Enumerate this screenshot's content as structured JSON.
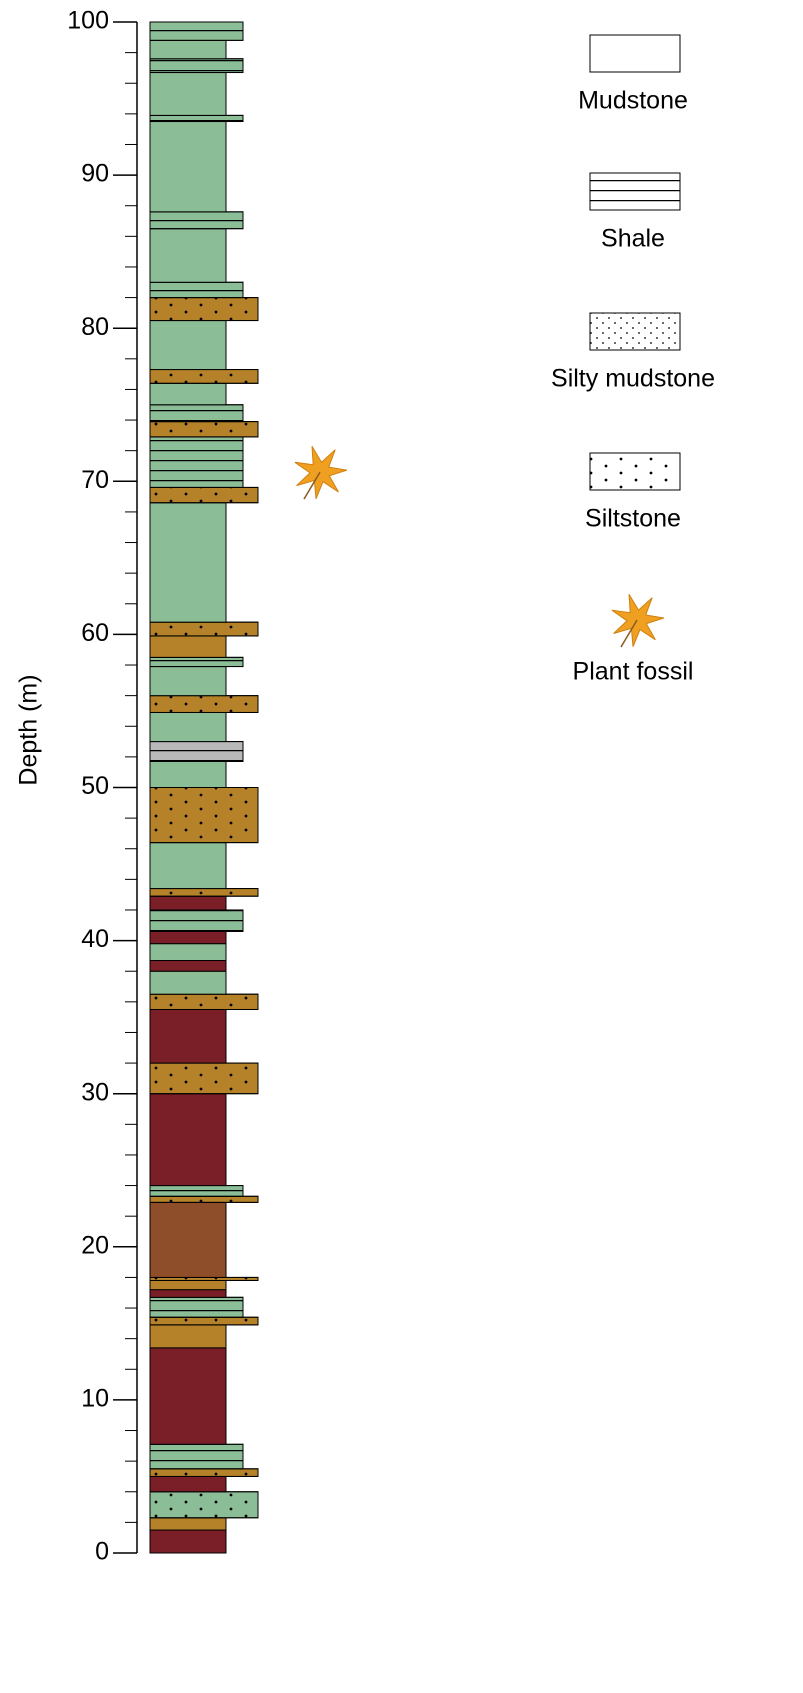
{
  "chart_data": {
    "type": "strat-column",
    "y_label": "Depth (m)",
    "ylim": [
      0,
      100
    ],
    "yticks": [
      0,
      10,
      20,
      30,
      40,
      50,
      60,
      70,
      80,
      90,
      100
    ],
    "yminorticks": [
      2,
      4,
      6,
      8,
      12,
      14,
      16,
      18,
      22,
      24,
      26,
      28,
      32,
      34,
      36,
      38,
      42,
      44,
      46,
      48,
      52,
      54,
      56,
      58,
      62,
      64,
      66,
      68,
      72,
      74,
      76,
      78,
      82,
      84,
      86,
      88,
      92,
      94,
      96,
      98
    ],
    "legend": [
      "Mudstone",
      "Shale",
      "Silty mudstone",
      "Siltstone",
      "Plant fossil"
    ],
    "layers": [
      {
        "bottom": 0,
        "top": 1.5,
        "lithology": "Mudstone",
        "color": "#7a1f28"
      },
      {
        "bottom": 1.5,
        "top": 2.3,
        "lithology": "Mudstone",
        "color": "#b5822a"
      },
      {
        "bottom": 2.3,
        "top": 4.0,
        "lithology": "Siltstone",
        "color": "#8bbd96"
      },
      {
        "bottom": 4.0,
        "top": 5.0,
        "lithology": "Mudstone",
        "color": "#7a1f28"
      },
      {
        "bottom": 5.0,
        "top": 5.5,
        "lithology": "Siltstone",
        "color": "#b5822a"
      },
      {
        "bottom": 5.5,
        "top": 7.1,
        "lithology": "Shale",
        "color": "#8bbd96"
      },
      {
        "bottom": 7.1,
        "top": 13.4,
        "lithology": "Mudstone",
        "color": "#7a1f28"
      },
      {
        "bottom": 13.4,
        "top": 14.9,
        "lithology": "Mudstone",
        "color": "#b5822a"
      },
      {
        "bottom": 14.9,
        "top": 15.4,
        "lithology": "Siltstone",
        "color": "#b5822a"
      },
      {
        "bottom": 15.4,
        "top": 16.7,
        "lithology": "Shale",
        "color": "#8bbd96"
      },
      {
        "bottom": 16.7,
        "top": 17.2,
        "lithology": "Mudstone",
        "color": "#7a1f28"
      },
      {
        "bottom": 17.2,
        "top": 17.8,
        "lithology": "Mudstone",
        "color": "#b5822a"
      },
      {
        "bottom": 17.8,
        "top": 18.0,
        "lithology": "Siltstone",
        "color": "#b5822a"
      },
      {
        "bottom": 18.0,
        "top": 22.9,
        "lithology": "Mudstone",
        "color": "#8f4e2a"
      },
      {
        "bottom": 22.9,
        "top": 23.3,
        "lithology": "Siltstone",
        "color": "#b5822a"
      },
      {
        "bottom": 23.3,
        "top": 24.0,
        "lithology": "Shale",
        "color": "#8bbd96"
      },
      {
        "bottom": 24.0,
        "top": 30.0,
        "lithology": "Mudstone",
        "color": "#7a1f28"
      },
      {
        "bottom": 30.0,
        "top": 32.0,
        "lithology": "Siltstone",
        "color": "#b5822a"
      },
      {
        "bottom": 32.0,
        "top": 35.5,
        "lithology": "Mudstone",
        "color": "#7a1f28"
      },
      {
        "bottom": 35.5,
        "top": 36.5,
        "lithology": "Siltstone",
        "color": "#b5822a"
      },
      {
        "bottom": 36.5,
        "top": 38.0,
        "lithology": "Mudstone",
        "color": "#8bbd96"
      },
      {
        "bottom": 38.0,
        "top": 38.7,
        "lithology": "Mudstone",
        "color": "#7a1f28"
      },
      {
        "bottom": 38.7,
        "top": 39.8,
        "lithology": "Mudstone",
        "color": "#8bbd96"
      },
      {
        "bottom": 39.8,
        "top": 40.6,
        "lithology": "Mudstone",
        "color": "#7a1f28"
      },
      {
        "bottom": 40.6,
        "top": 42.0,
        "lithology": "Shale",
        "color": "#8bbd96"
      },
      {
        "bottom": 42.0,
        "top": 42.9,
        "lithology": "Mudstone",
        "color": "#7a1f28"
      },
      {
        "bottom": 42.9,
        "top": 43.4,
        "lithology": "Siltstone",
        "color": "#b5822a"
      },
      {
        "bottom": 43.4,
        "top": 46.4,
        "lithology": "Mudstone",
        "color": "#8bbd96"
      },
      {
        "bottom": 46.4,
        "top": 50.0,
        "lithology": "Siltstone",
        "color": "#b5822a"
      },
      {
        "bottom": 50.0,
        "top": 51.7,
        "lithology": "Mudstone",
        "color": "#8bbd96"
      },
      {
        "bottom": 51.7,
        "top": 53.0,
        "lithology": "Shale",
        "color": "#b9b9b9"
      },
      {
        "bottom": 53.0,
        "top": 54.9,
        "lithology": "Mudstone",
        "color": "#8bbd96"
      },
      {
        "bottom": 54.9,
        "top": 56.0,
        "lithology": "Siltstone",
        "color": "#b5822a"
      },
      {
        "bottom": 56.0,
        "top": 57.9,
        "lithology": "Mudstone",
        "color": "#8bbd96"
      },
      {
        "bottom": 57.9,
        "top": 58.5,
        "lithology": "Shale",
        "color": "#8bbd96"
      },
      {
        "bottom": 58.5,
        "top": 59.9,
        "lithology": "Mudstone",
        "color": "#b5822a"
      },
      {
        "bottom": 59.9,
        "top": 60.8,
        "lithology": "Siltstone",
        "color": "#b5822a"
      },
      {
        "bottom": 60.8,
        "top": 68.6,
        "lithology": "Mudstone",
        "color": "#8bbd96"
      },
      {
        "bottom": 68.6,
        "top": 69.6,
        "lithology": "Siltstone",
        "color": "#b5822a"
      },
      {
        "bottom": 69.6,
        "top": 72.9,
        "lithology": "Shale",
        "color": "#8bbd96"
      },
      {
        "bottom": 72.9,
        "top": 73.9,
        "lithology": "Siltstone",
        "color": "#b5822a"
      },
      {
        "bottom": 73.9,
        "top": 75.0,
        "lithology": "Shale",
        "color": "#8bbd96"
      },
      {
        "bottom": 75.0,
        "top": 76.4,
        "lithology": "Mudstone",
        "color": "#8bbd96"
      },
      {
        "bottom": 76.4,
        "top": 77.3,
        "lithology": "Siltstone",
        "color": "#b5822a"
      },
      {
        "bottom": 77.3,
        "top": 80.5,
        "lithology": "Mudstone",
        "color": "#8bbd96"
      },
      {
        "bottom": 80.5,
        "top": 82.0,
        "lithology": "Siltstone",
        "color": "#b5822a"
      },
      {
        "bottom": 82.0,
        "top": 83.0,
        "lithology": "Shale",
        "color": "#8bbd96"
      },
      {
        "bottom": 83.0,
        "top": 86.5,
        "lithology": "Mudstone",
        "color": "#8bbd96"
      },
      {
        "bottom": 86.5,
        "top": 87.6,
        "lithology": "Shale",
        "color": "#8bbd96"
      },
      {
        "bottom": 87.6,
        "top": 93.5,
        "lithology": "Mudstone",
        "color": "#8bbd96"
      },
      {
        "bottom": 93.5,
        "top": 93.9,
        "lithology": "Shale",
        "color": "#8bbd96"
      },
      {
        "bottom": 93.9,
        "top": 96.7,
        "lithology": "Mudstone",
        "color": "#8bbd96"
      },
      {
        "bottom": 96.7,
        "top": 97.6,
        "lithology": "Shale",
        "color": "#8bbd96"
      },
      {
        "bottom": 97.6,
        "top": 98.8,
        "lithology": "Mudstone",
        "color": "#8bbd96"
      },
      {
        "bottom": 98.8,
        "top": 100,
        "lithology": "Shale",
        "color": "#8bbd96"
      }
    ],
    "fossils": [
      70.6
    ],
    "fossil_color": "#f0a020"
  }
}
